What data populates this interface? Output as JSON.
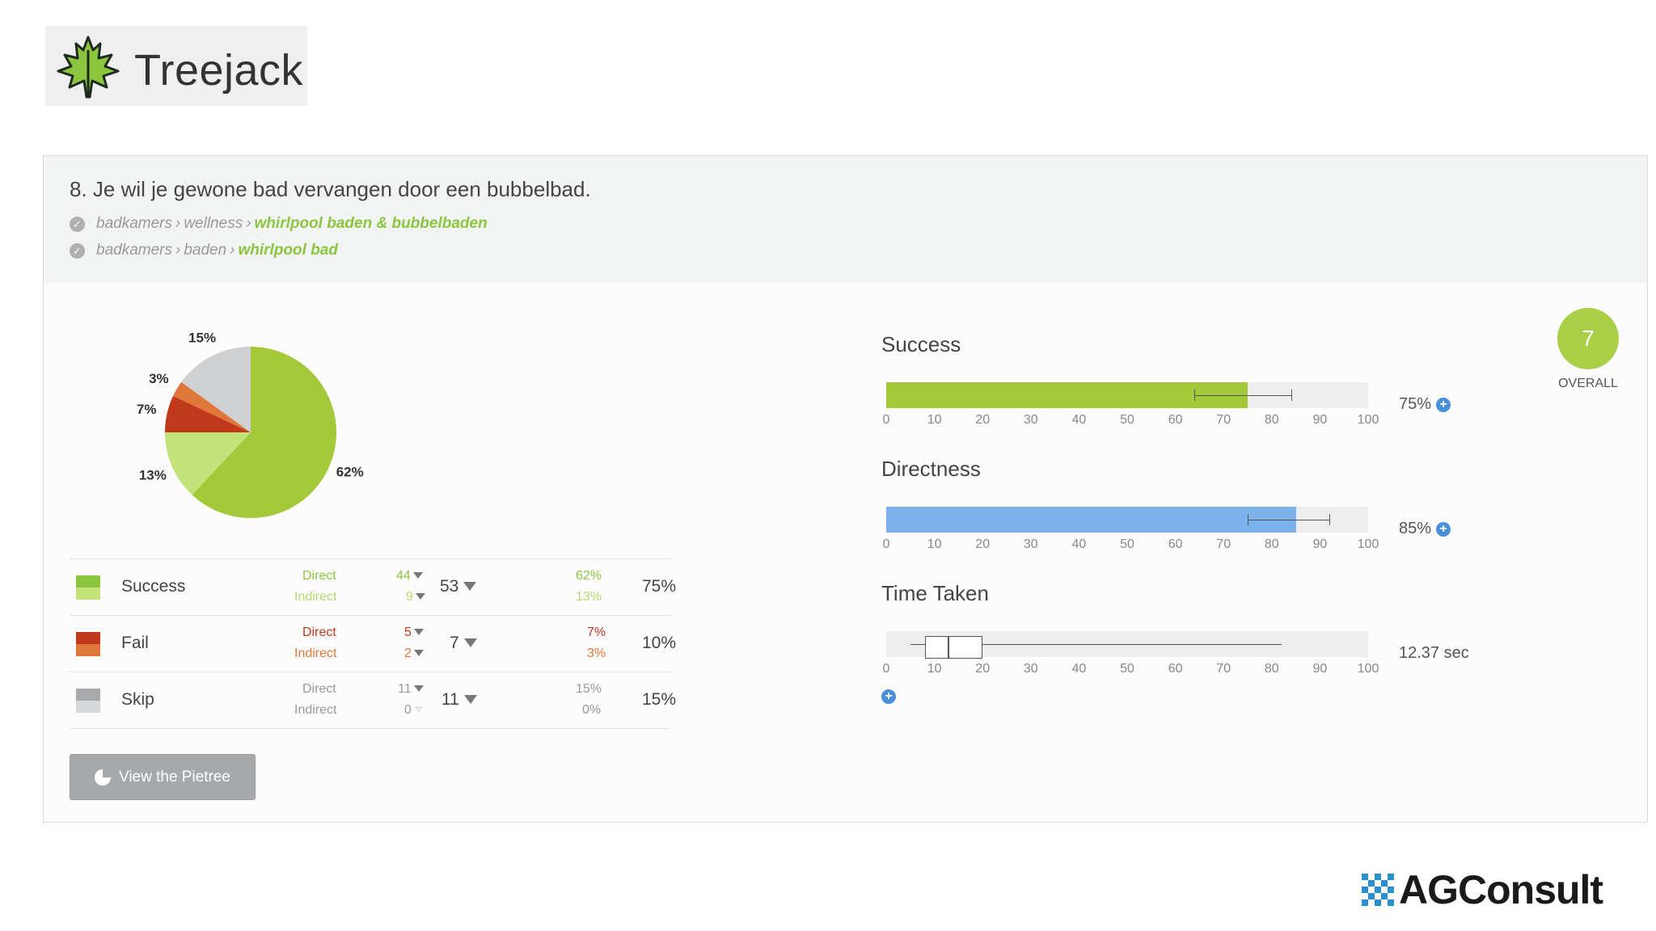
{
  "brand": {
    "name": "Treejack"
  },
  "question": "8. Je wil je gewone bad vervangen door een bubbelbad.",
  "paths": [
    {
      "crumbs": [
        "badkamers",
        "wellness"
      ],
      "target": "whirlpool baden & bubbelbaden"
    },
    {
      "crumbs": [
        "badkamers",
        "baden"
      ],
      "target": "whirlpool bad"
    }
  ],
  "results": [
    {
      "name": "Success",
      "direct_label": "Direct",
      "indirect_label": "Indirect",
      "direct_count": "44",
      "indirect_count": "9",
      "total": "53",
      "direct_pct": "62%",
      "indirect_pct": "13%",
      "pct": "75%",
      "colors": [
        "#8cc63f",
        "#c3e37a"
      ]
    },
    {
      "name": "Fail",
      "direct_label": "Direct",
      "indirect_label": "Indirect",
      "direct_count": "5",
      "indirect_count": "2",
      "total": "7",
      "direct_pct": "7%",
      "indirect_pct": "3%",
      "pct": "10%",
      "colors": [
        "#c0391b",
        "#e0773a"
      ]
    },
    {
      "name": "Skip",
      "direct_label": "Direct",
      "indirect_label": "Indirect",
      "direct_count": "11",
      "indirect_count": "0",
      "total": "11",
      "direct_pct": "15%",
      "indirect_pct": "0%",
      "pct": "15%",
      "colors": [
        "#a9aaac",
        "#d6d7d8"
      ]
    }
  ],
  "pietree_button": "View the Pietree",
  "metrics": {
    "success": {
      "title": "Success",
      "value": "75%",
      "score": 75,
      "error_low": 64,
      "error_high": 84,
      "color": "#a3c93a"
    },
    "directness": {
      "title": "Directness",
      "value": "85%",
      "score": 85,
      "error_low": 75,
      "error_high": 92,
      "color": "#7cb3ec"
    },
    "time": {
      "title": "Time Taken",
      "value": "12.37 sec",
      "whisker_low": 5,
      "q1": 8,
      "median": 13,
      "q3": 20,
      "whisker_high": 82
    },
    "axis_ticks": [
      "0",
      "10",
      "20",
      "30",
      "40",
      "50",
      "60",
      "70",
      "80",
      "90",
      "100"
    ]
  },
  "overall": {
    "score": "7",
    "label": "OVERALL"
  },
  "footer_logo": "AGConsult",
  "chart_data": {
    "type": "pie",
    "labels": [
      "Success direct",
      "Success indirect",
      "Fail direct",
      "Fail indirect",
      "Skip direct",
      "Skip indirect"
    ],
    "values": [
      62,
      13,
      7,
      3,
      15,
      0
    ],
    "value_labels": [
      "62%",
      "13%",
      "7%",
      "3%",
      "15%",
      ""
    ],
    "colors": [
      "#a3c93a",
      "#c3e37a",
      "#c0391b",
      "#e0773a",
      "#cfd0d2",
      "#e6e7e8"
    ]
  }
}
